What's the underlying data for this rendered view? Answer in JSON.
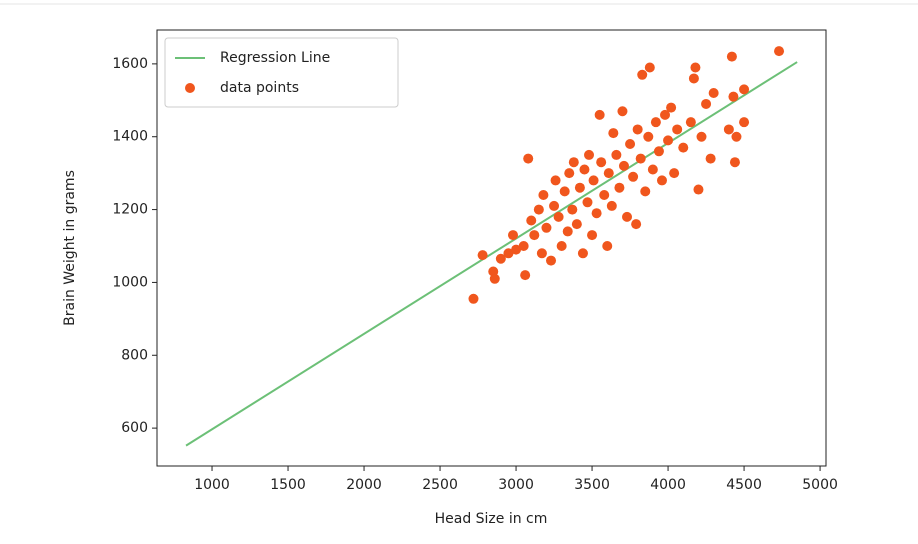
{
  "chart_data": {
    "type": "scatter",
    "xlabel": "Head Size in cm",
    "ylabel": "Brain Weight in grams",
    "xlim": [
      638,
      5039
    ],
    "ylim": [
      496,
      1693
    ],
    "xticks": [
      1000,
      1500,
      2000,
      2500,
      3000,
      3500,
      4000,
      4500,
      5000
    ],
    "yticks": [
      600,
      800,
      1000,
      1200,
      1400,
      1600
    ],
    "legend": "upper left",
    "series": [
      {
        "name": "Regression Line",
        "type": "line",
        "color": "#6cc077",
        "x": [
          829,
          4849
        ],
        "values": [
          552,
          1605
        ]
      },
      {
        "name": "data points",
        "type": "scatter",
        "color": "#f0561d",
        "x": [
          2720,
          2780,
          2850,
          2860,
          2900,
          2950,
          2980,
          3000,
          3050,
          3060,
          3080,
          3100,
          3120,
          3150,
          3170,
          3180,
          3200,
          3230,
          3250,
          3260,
          3280,
          3300,
          3320,
          3340,
          3350,
          3370,
          3380,
          3400,
          3420,
          3440,
          3450,
          3470,
          3480,
          3500,
          3510,
          3530,
          3550,
          3560,
          3580,
          3600,
          3610,
          3630,
          3640,
          3660,
          3680,
          3700,
          3710,
          3730,
          3750,
          3770,
          3790,
          3800,
          3820,
          3830,
          3850,
          3870,
          3880,
          3900,
          3920,
          3940,
          3960,
          3980,
          4000,
          4020,
          4040,
          4060,
          4100,
          4150,
          4170,
          4180,
          4200,
          4220,
          4250,
          4280,
          4300,
          4400,
          4420,
          4430,
          4440,
          4450,
          4500,
          4500,
          4730
        ],
        "values": [
          955,
          1075,
          1030,
          1010,
          1065,
          1080,
          1130,
          1090,
          1100,
          1020,
          1340,
          1170,
          1130,
          1200,
          1080,
          1240,
          1150,
          1060,
          1210,
          1280,
          1180,
          1100,
          1250,
          1140,
          1300,
          1200,
          1330,
          1160,
          1260,
          1080,
          1310,
          1220,
          1350,
          1130,
          1280,
          1190,
          1460,
          1330,
          1240,
          1100,
          1300,
          1210,
          1410,
          1350,
          1260,
          1470,
          1320,
          1180,
          1380,
          1290,
          1160,
          1420,
          1340,
          1570,
          1250,
          1400,
          1590,
          1310,
          1440,
          1360,
          1280,
          1460,
          1390,
          1480,
          1300,
          1420,
          1370,
          1440,
          1560,
          1590,
          1255,
          1400,
          1490,
          1340,
          1520,
          1420,
          1620,
          1510,
          1330,
          1400,
          1440,
          1530,
          1635
        ]
      }
    ]
  }
}
